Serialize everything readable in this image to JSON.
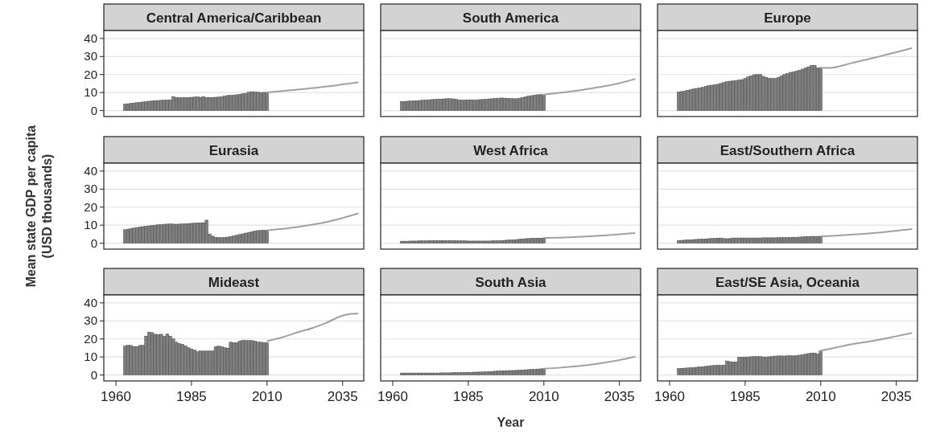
{
  "chart_data": [
    {
      "type": "bar",
      "title": "Central America/Caribbean",
      "xlim": [
        1956,
        2042
      ],
      "ylim": [
        -3.3,
        44.4
      ],
      "yticks": [
        0,
        10,
        20,
        30,
        40
      ],
      "grid": "y",
      "tick_labels": "y",
      "series": [
        {
          "type": "bar",
          "color": "#7f7f7f",
          "x": [
            1963,
            1964,
            1965,
            1966,
            1967,
            1968,
            1969,
            1970,
            1971,
            1972,
            1973,
            1974,
            1975,
            1976,
            1977,
            1978,
            1979,
            1980,
            1981,
            1982,
            1983,
            1984,
            1985,
            1986,
            1987,
            1988,
            1989,
            1990,
            1991,
            1992,
            1993,
            1994,
            1995,
            1996,
            1997,
            1998,
            1999,
            2000,
            2001,
            2002,
            2003,
            2004,
            2005,
            2006,
            2007,
            2008,
            2009,
            2010
          ],
          "values": [
            3.6,
            3.8,
            4.0,
            4.2,
            4.4,
            4.6,
            4.8,
            5.0,
            5.2,
            5.3,
            5.5,
            5.6,
            5.7,
            5.8,
            5.9,
            6.0,
            7.8,
            7.3,
            7.2,
            7.2,
            7.3,
            7.3,
            7.4,
            7.5,
            7.6,
            7.4,
            7.8,
            7.3,
            7.3,
            7.3,
            7.4,
            7.5,
            7.7,
            8.0,
            8.4,
            8.5,
            8.6,
            8.8,
            9.0,
            9.3,
            9.6,
            10.2,
            10.5,
            10.4,
            10.2,
            10.0,
            10.1,
            10.1
          ]
        },
        {
          "type": "line",
          "color": "#a0a0a0",
          "x": [
            2010,
            2015,
            2020,
            2025,
            2030,
            2035,
            2040
          ],
          "values": [
            10.1,
            10.8,
            11.6,
            12.5,
            13.4,
            14.5,
            15.6
          ]
        }
      ]
    },
    {
      "type": "bar",
      "title": "South America",
      "xlim": [
        1956,
        2042
      ],
      "ylim": [
        -3.3,
        44.4
      ],
      "yticks": [
        0,
        10,
        20,
        30,
        40
      ],
      "grid": "y",
      "tick_labels": false,
      "series": [
        {
          "type": "bar",
          "color": "#7f7f7f",
          "x": [
            1963,
            1964,
            1965,
            1966,
            1967,
            1968,
            1969,
            1970,
            1971,
            1972,
            1973,
            1974,
            1975,
            1976,
            1977,
            1978,
            1979,
            1980,
            1981,
            1982,
            1983,
            1984,
            1985,
            1986,
            1987,
            1988,
            1989,
            1990,
            1991,
            1992,
            1993,
            1994,
            1995,
            1996,
            1997,
            1998,
            1999,
            2000,
            2001,
            2002,
            2003,
            2004,
            2005,
            2006,
            2007,
            2008,
            2009,
            2010
          ],
          "values": [
            5.1,
            5.1,
            5.2,
            5.3,
            5.4,
            5.5,
            5.6,
            5.8,
            5.9,
            6.0,
            6.1,
            6.2,
            6.3,
            6.4,
            6.5,
            6.6,
            6.6,
            6.5,
            6.2,
            5.9,
            5.8,
            5.9,
            6.0,
            6.0,
            5.9,
            6.0,
            6.1,
            6.2,
            6.3,
            6.5,
            6.6,
            6.8,
            6.9,
            7.0,
            6.9,
            6.8,
            6.7,
            6.6,
            6.6,
            6.9,
            7.3,
            7.7,
            8.0,
            8.3,
            8.6,
            8.8,
            8.9,
            8.7
          ]
        },
        {
          "type": "line",
          "color": "#a0a0a0",
          "x": [
            2010,
            2015,
            2020,
            2025,
            2030,
            2035,
            2040
          ],
          "values": [
            8.9,
            9.8,
            10.9,
            12.1,
            13.5,
            15.2,
            17.5
          ]
        }
      ]
    },
    {
      "type": "bar",
      "title": "Europe",
      "xlim": [
        1956,
        2042
      ],
      "ylim": [
        -3.3,
        44.4
      ],
      "yticks": [
        0,
        10,
        20,
        30,
        40
      ],
      "grid": "y",
      "tick_labels": false,
      "series": [
        {
          "type": "bar",
          "color": "#7f7f7f",
          "x": [
            1963,
            1964,
            1965,
            1966,
            1967,
            1968,
            1969,
            1970,
            1971,
            1972,
            1973,
            1974,
            1975,
            1976,
            1977,
            1978,
            1979,
            1980,
            1981,
            1982,
            1983,
            1984,
            1985,
            1986,
            1987,
            1988,
            1989,
            1990,
            1991,
            1992,
            1993,
            1994,
            1995,
            1996,
            1997,
            1998,
            1999,
            2000,
            2001,
            2002,
            2003,
            2004,
            2005,
            2006,
            2007,
            2008,
            2009,
            2010
          ],
          "values": [
            10.3,
            10.6,
            10.9,
            11.3,
            11.6,
            12.0,
            12.3,
            12.6,
            12.9,
            13.4,
            13.9,
            14.1,
            14.4,
            14.6,
            15.1,
            15.6,
            16.1,
            16.3,
            16.5,
            16.7,
            17.0,
            17.2,
            17.9,
            18.7,
            19.3,
            19.9,
            20.0,
            20.0,
            19.0,
            18.4,
            17.8,
            17.8,
            17.8,
            18.4,
            19.2,
            20.0,
            20.6,
            21.2,
            21.5,
            21.9,
            22.4,
            23.0,
            23.6,
            24.3,
            25.1,
            25.1,
            23.6,
            23.8
          ]
        },
        {
          "type": "line",
          "color": "#a0a0a0",
          "x": [
            2010,
            2013,
            2020,
            2025,
            2030,
            2035,
            2040
          ],
          "values": [
            23.8,
            23.7,
            26.3,
            28.2,
            30.3,
            32.4,
            34.6
          ]
        }
      ]
    },
    {
      "type": "bar",
      "title": "Eurasia",
      "ylabel": "Mean state GDP per capita\n(USD thousands)",
      "xlim": [
        1956,
        2042
      ],
      "ylim": [
        -3.3,
        44.4
      ],
      "yticks": [
        0,
        10,
        20,
        30,
        40
      ],
      "grid": "y",
      "tick_labels": "y",
      "series": [
        {
          "type": "bar",
          "color": "#7f7f7f",
          "x": [
            1963,
            1964,
            1965,
            1966,
            1967,
            1968,
            1969,
            1970,
            1971,
            1972,
            1973,
            1974,
            1975,
            1976,
            1977,
            1978,
            1979,
            1980,
            1981,
            1982,
            1983,
            1984,
            1985,
            1986,
            1987,
            1988,
            1989,
            1990,
            1991,
            1992,
            1993,
            1994,
            1995,
            1996,
            1997,
            1998,
            1999,
            2000,
            2001,
            2002,
            2003,
            2004,
            2005,
            2006,
            2007,
            2008,
            2009,
            2010
          ],
          "values": [
            7.5,
            7.8,
            8.1,
            8.4,
            8.7,
            9.0,
            9.2,
            9.4,
            9.6,
            9.8,
            10.0,
            10.2,
            10.4,
            10.5,
            10.6,
            10.7,
            10.6,
            10.5,
            10.6,
            10.7,
            10.8,
            10.9,
            11.0,
            11.1,
            11.2,
            11.3,
            11.4,
            12.8,
            5.1,
            3.9,
            3.3,
            3.1,
            3.1,
            3.2,
            3.4,
            3.7,
            4.0,
            4.4,
            4.8,
            5.2,
            5.6,
            6.0,
            6.4,
            6.8,
            7.0,
            7.1,
            7.2,
            7.2
          ]
        },
        {
          "type": "line",
          "color": "#a0a0a0",
          "x": [
            2010,
            2015,
            2020,
            2025,
            2030,
            2035,
            2040
          ],
          "values": [
            7.2,
            8.0,
            9.0,
            10.3,
            11.9,
            14.0,
            16.4
          ]
        }
      ]
    },
    {
      "type": "bar",
      "title": "West Africa",
      "xlim": [
        1956,
        2042
      ],
      "ylim": [
        -3.3,
        44.4
      ],
      "yticks": [
        0,
        10,
        20,
        30,
        40
      ],
      "grid": "y",
      "tick_labels": false,
      "series": [
        {
          "type": "bar",
          "color": "#7f7f7f",
          "x": [
            1963,
            1964,
            1965,
            1966,
            1967,
            1968,
            1969,
            1970,
            1971,
            1972,
            1973,
            1974,
            1975,
            1976,
            1977,
            1978,
            1979,
            1980,
            1981,
            1982,
            1983,
            1984,
            1985,
            1986,
            1987,
            1988,
            1989,
            1990,
            1991,
            1992,
            1993,
            1994,
            1995,
            1996,
            1997,
            1998,
            1999,
            2000,
            2001,
            2002,
            2003,
            2004,
            2005,
            2006,
            2007,
            2008,
            2009,
            2010
          ],
          "values": [
            1.1,
            1.1,
            1.1,
            1.2,
            1.2,
            1.2,
            1.3,
            1.3,
            1.3,
            1.4,
            1.4,
            1.4,
            1.5,
            1.5,
            1.5,
            1.5,
            1.5,
            1.4,
            1.4,
            1.3,
            1.3,
            1.3,
            1.2,
            1.2,
            1.2,
            1.2,
            1.2,
            1.2,
            1.2,
            1.2,
            1.3,
            1.3,
            1.4,
            1.5,
            1.6,
            1.7,
            1.8,
            1.9,
            2.0,
            2.2,
            2.4,
            2.5,
            2.6,
            2.7,
            2.8,
            2.8,
            2.8,
            2.9
          ]
        },
        {
          "type": "line",
          "color": "#a0a0a0",
          "x": [
            2010,
            2015,
            2020,
            2025,
            2030,
            2035,
            2040
          ],
          "values": [
            2.9,
            3.1,
            3.4,
            3.8,
            4.3,
            4.9,
            5.6
          ]
        }
      ]
    },
    {
      "type": "bar",
      "title": "East/Southern Africa",
      "xlim": [
        1956,
        2042
      ],
      "ylim": [
        -3.3,
        44.4
      ],
      "yticks": [
        0,
        10,
        20,
        30,
        40
      ],
      "grid": "y",
      "tick_labels": false,
      "series": [
        {
          "type": "bar",
          "color": "#7f7f7f",
          "x": [
            1963,
            1964,
            1965,
            1966,
            1967,
            1968,
            1969,
            1970,
            1971,
            1972,
            1973,
            1974,
            1975,
            1976,
            1977,
            1978,
            1979,
            1980,
            1981,
            1982,
            1983,
            1984,
            1985,
            1986,
            1987,
            1988,
            1989,
            1990,
            1991,
            1992,
            1993,
            1994,
            1995,
            1996,
            1997,
            1998,
            1999,
            2000,
            2001,
            2002,
            2003,
            2004,
            2005,
            2006,
            2007,
            2008,
            2009,
            2010
          ],
          "values": [
            1.5,
            1.6,
            1.7,
            1.8,
            1.9,
            2.0,
            2.1,
            2.2,
            2.3,
            2.4,
            2.5,
            2.6,
            2.7,
            2.8,
            2.9,
            2.6,
            2.5,
            2.6,
            2.9,
            2.9,
            2.9,
            2.9,
            2.9,
            2.9,
            2.9,
            2.9,
            2.9,
            2.9,
            3.0,
            3.0,
            3.0,
            3.0,
            3.0,
            3.1,
            3.1,
            3.1,
            3.2,
            3.2,
            3.3,
            3.3,
            3.4,
            3.5,
            3.6,
            3.7,
            3.8,
            3.8,
            3.8,
            3.8
          ]
        },
        {
          "type": "line",
          "color": "#a0a0a0",
          "x": [
            2010,
            2015,
            2020,
            2025,
            2030,
            2035,
            2040
          ],
          "values": [
            3.8,
            4.2,
            4.7,
            5.3,
            6.0,
            6.8,
            7.8
          ]
        }
      ]
    },
    {
      "type": "bar",
      "title": "Mideast",
      "xlim": [
        1956,
        2042
      ],
      "xticks": [
        1960,
        1985,
        2010,
        2035
      ],
      "ylim": [
        -3.3,
        44.4
      ],
      "yticks": [
        0,
        10,
        20,
        30,
        40
      ],
      "grid": "y",
      "series": [
        {
          "type": "bar",
          "color": "#7f7f7f",
          "x": [
            1963,
            1964,
            1965,
            1966,
            1967,
            1968,
            1969,
            1970,
            1971,
            1972,
            1973,
            1974,
            1975,
            1976,
            1977,
            1978,
            1979,
            1980,
            1981,
            1982,
            1983,
            1984,
            1985,
            1986,
            1987,
            1988,
            1989,
            1990,
            1991,
            1992,
            1993,
            1994,
            1995,
            1996,
            1997,
            1998,
            1999,
            2000,
            2001,
            2002,
            2003,
            2004,
            2005,
            2006,
            2007,
            2008,
            2009,
            2010
          ],
          "values": [
            16.0,
            16.5,
            16.4,
            15.8,
            15.8,
            16.4,
            16.5,
            21.6,
            23.8,
            23.5,
            22.6,
            22.5,
            22.6,
            21.4,
            22.7,
            21.6,
            20.1,
            18.2,
            17.4,
            17.1,
            16.2,
            15.1,
            14.5,
            13.9,
            13.0,
            13.3,
            13.3,
            13.3,
            13.3,
            13.3,
            15.7,
            16.0,
            15.7,
            15.2,
            14.9,
            18.2,
            18.0,
            18.0,
            18.9,
            19.2,
            19.2,
            19.1,
            19.1,
            18.8,
            18.3,
            18.2,
            18.0,
            17.8
          ]
        },
        {
          "type": "line",
          "color": "#a0a0a0",
          "x": [
            2010,
            2015,
            2021,
            2025,
            2029,
            2035,
            2038,
            2040
          ],
          "values": [
            18.8,
            20.9,
            24.1,
            26.0,
            28.5,
            32.9,
            33.9,
            34.0
          ]
        }
      ]
    },
    {
      "type": "bar",
      "title": "South Asia",
      "xlabel": "Year",
      "xlim": [
        1956,
        2042
      ],
      "xticks": [
        1960,
        1985,
        2010,
        2035
      ],
      "ylim": [
        -3.3,
        44.4
      ],
      "yticks": [
        0,
        10,
        20,
        30,
        40
      ],
      "grid": "y",
      "tick_labels": "x",
      "series": [
        {
          "type": "bar",
          "color": "#7f7f7f",
          "x": [
            1963,
            1964,
            1965,
            1966,
            1967,
            1968,
            1969,
            1970,
            1971,
            1972,
            1973,
            1974,
            1975,
            1976,
            1977,
            1978,
            1979,
            1980,
            1981,
            1982,
            1983,
            1984,
            1985,
            1986,
            1987,
            1988,
            1989,
            1990,
            1991,
            1992,
            1993,
            1994,
            1995,
            1996,
            1997,
            1998,
            1999,
            2000,
            2001,
            2002,
            2003,
            2004,
            2005,
            2006,
            2007,
            2008,
            2009,
            2010
          ],
          "values": [
            1.1,
            1.1,
            1.1,
            1.1,
            1.1,
            1.1,
            1.1,
            1.1,
            1.1,
            1.1,
            1.1,
            1.1,
            1.1,
            1.2,
            1.2,
            1.2,
            1.2,
            1.3,
            1.3,
            1.3,
            1.4,
            1.4,
            1.5,
            1.5,
            1.6,
            1.6,
            1.7,
            1.7,
            1.8,
            1.9,
            2.0,
            2.1,
            2.2,
            2.3,
            2.3,
            2.4,
            2.5,
            2.5,
            2.6,
            2.7,
            2.8,
            2.9,
            3.0,
            3.1,
            3.2,
            3.3,
            3.4,
            3.5
          ]
        },
        {
          "type": "line",
          "color": "#a0a0a0",
          "x": [
            2010,
            2015,
            2020,
            2025,
            2030,
            2035,
            2040
          ],
          "values": [
            3.5,
            4.0,
            4.7,
            5.6,
            6.8,
            8.3,
            10.1
          ]
        }
      ]
    },
    {
      "type": "bar",
      "title": "East/SE Asia, Oceania",
      "xlim": [
        1956,
        2042
      ],
      "xticks": [
        1960,
        1985,
        2010,
        2035
      ],
      "ylim": [
        -3.3,
        44.4
      ],
      "yticks": [
        0,
        10,
        20,
        30,
        40
      ],
      "grid": "y",
      "tick_labels": "x",
      "series": [
        {
          "type": "bar",
          "color": "#7f7f7f",
          "x": [
            1963,
            1964,
            1965,
            1966,
            1967,
            1968,
            1969,
            1970,
            1971,
            1972,
            1973,
            1974,
            1975,
            1976,
            1977,
            1978,
            1979,
            1980,
            1981,
            1982,
            1983,
            1984,
            1985,
            1986,
            1987,
            1988,
            1989,
            1990,
            1991,
            1992,
            1993,
            1994,
            1995,
            1996,
            1997,
            1998,
            1999,
            2000,
            2001,
            2002,
            2003,
            2004,
            2005,
            2006,
            2007,
            2008,
            2009,
            2010
          ],
          "values": [
            3.6,
            3.7,
            3.8,
            3.9,
            4.0,
            4.1,
            4.3,
            4.5,
            4.6,
            4.8,
            5.0,
            5.2,
            5.3,
            5.4,
            5.4,
            5.5,
            7.8,
            7.4,
            7.2,
            7.3,
            9.9,
            9.9,
            10.0,
            10.0,
            10.1,
            10.2,
            10.3,
            10.2,
            10.0,
            10.0,
            10.1,
            10.3,
            10.5,
            10.6,
            10.6,
            10.5,
            10.7,
            10.7,
            10.6,
            10.8,
            11.0,
            11.3,
            11.6,
            11.9,
            12.2,
            12.2,
            11.6,
            13.4
          ]
        },
        {
          "type": "line",
          "color": "#a0a0a0",
          "x": [
            2010,
            2015,
            2020,
            2025,
            2030,
            2035,
            2040
          ],
          "values": [
            13.4,
            15.2,
            17.0,
            18.3,
            19.8,
            21.5,
            23.2
          ]
        }
      ]
    }
  ]
}
